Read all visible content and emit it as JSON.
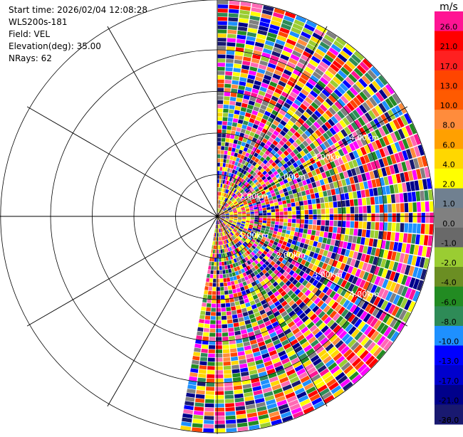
{
  "header": {
    "start_time": "Start time: 2026/02/04 12:08:28",
    "instrument": "WLS200s-181",
    "field": "Field: VEL",
    "elevation": "Elevation(deg): 35.00",
    "nrays": "NRays: 62"
  },
  "colorbar": {
    "unit": "m/s",
    "ticks": [
      "26.0",
      "21.0",
      "17.0",
      "13.0",
      "10.0",
      "8.0",
      "6.0",
      "4.0",
      "2.0",
      "1.0",
      "0.0",
      "-1.0",
      "-2.0",
      "-4.0",
      "-6.0",
      "-8.0",
      "-10.0",
      "-13.0",
      "-17.0",
      "-21.0",
      "-26.0",
      "-30.0"
    ],
    "colors": [
      "#ff1493",
      "#ff0000",
      "#ff2020",
      "#ff4500",
      "#ff5a00",
      "#ff8c3c",
      "#ffa000",
      "#ffd700",
      "#ffff00",
      "#708090",
      "#808080",
      "#696969",
      "#9acd32",
      "#6b8e23",
      "#228b22",
      "#2e8b57",
      "#1e90ff",
      "#0000ff",
      "#0000cd",
      "#00008b",
      "#191970"
    ]
  },
  "chart_data": {
    "type": "heatmap",
    "description_type": "ppi_sector_scan",
    "field": "VEL",
    "units": "m/s",
    "azimuth_range_deg": [
      0,
      190
    ],
    "nrays": 62,
    "range_rings_km": [
      1.0,
      2.0,
      3.0,
      4.0
    ],
    "ring_labels": [
      "1.00km",
      "2.00km",
      "3.00km",
      "4.00km"
    ],
    "max_range_km": 5.2,
    "value_range": [
      -30.0,
      26.0
    ]
  }
}
